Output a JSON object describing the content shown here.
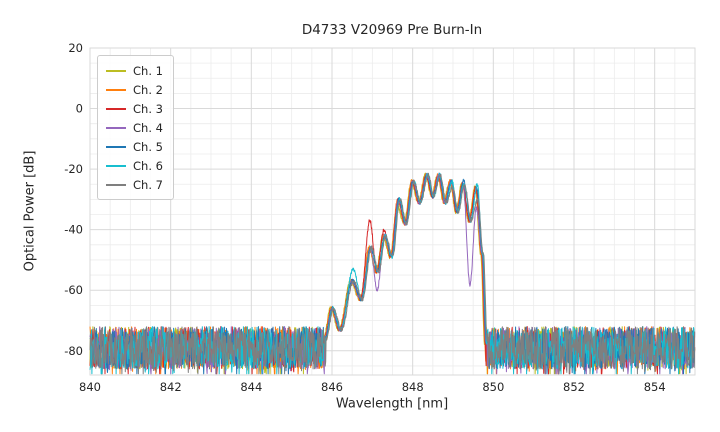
{
  "chart_data": {
    "type": "line",
    "title": "D4733 V20969 Pre Burn-In",
    "xlabel": "Wavelength [nm]",
    "ylabel": "Optical Power [dB]",
    "xlim": [
      840,
      855
    ],
    "ylim": [
      -88,
      20
    ],
    "xticks": [
      840,
      842,
      844,
      846,
      848,
      850,
      852,
      854
    ],
    "yticks": [
      20,
      0,
      -20,
      -40,
      -60,
      -80
    ],
    "x_minor_step": 0.5,
    "y_minor_step": 5,
    "grid": true,
    "legend_position": "upper left",
    "noise_floor": {
      "mean_db": -79,
      "spread_db": 14,
      "xstart": 840,
      "xend": 855
    },
    "comb_anchors": [
      [
        845.82,
        -76
      ],
      [
        846.0,
        -66
      ],
      [
        846.2,
        -73
      ],
      [
        846.5,
        -57
      ],
      [
        846.72,
        -63
      ],
      [
        846.95,
        -46
      ],
      [
        847.12,
        -54
      ],
      [
        847.3,
        -42
      ],
      [
        847.47,
        -49
      ],
      [
        847.65,
        -30
      ],
      [
        847.82,
        -38
      ],
      [
        848.0,
        -24
      ],
      [
        848.17,
        -31
      ],
      [
        848.35,
        -22
      ],
      [
        848.5,
        -29
      ],
      [
        848.65,
        -22
      ],
      [
        848.8,
        -31
      ],
      [
        848.95,
        -24
      ],
      [
        849.1,
        -34
      ],
      [
        849.25,
        -25
      ],
      [
        849.42,
        -37
      ],
      [
        849.58,
        -26
      ],
      [
        849.72,
        -48
      ],
      [
        849.82,
        -78
      ]
    ],
    "series": [
      {
        "name": "Ch. 1",
        "color": "#bcbd22",
        "overrides": [
          [
            847.65,
            -32
          ]
        ]
      },
      {
        "name": "Ch. 2",
        "color": "#ff7f0e",
        "overrides": []
      },
      {
        "name": "Ch. 3",
        "color": "#d62728",
        "overrides": [
          [
            846.95,
            -37
          ],
          [
            847.3,
            -40
          ]
        ]
      },
      {
        "name": "Ch. 4",
        "color": "#9467bd",
        "overrides": [
          [
            847.12,
            -60
          ],
          [
            849.42,
            -58
          ],
          [
            849.58,
            -33
          ]
        ]
      },
      {
        "name": "Ch. 5",
        "color": "#1f77b4",
        "overrides": [
          [
            849.25,
            -24
          ]
        ]
      },
      {
        "name": "Ch. 6",
        "color": "#17becf",
        "overrides": [
          [
            849.58,
            -25
          ],
          [
            846.5,
            -53
          ]
        ]
      },
      {
        "name": "Ch. 7",
        "color": "#7f7f7f",
        "overrides": [
          [
            848.95,
            -26
          ],
          [
            849.58,
            -30
          ]
        ]
      }
    ],
    "style": {
      "grid_major_color": "#d9d9d9",
      "grid_minor_color": "#ececec",
      "tick_label_color": "#262626",
      "background": "#ffffff"
    }
  }
}
